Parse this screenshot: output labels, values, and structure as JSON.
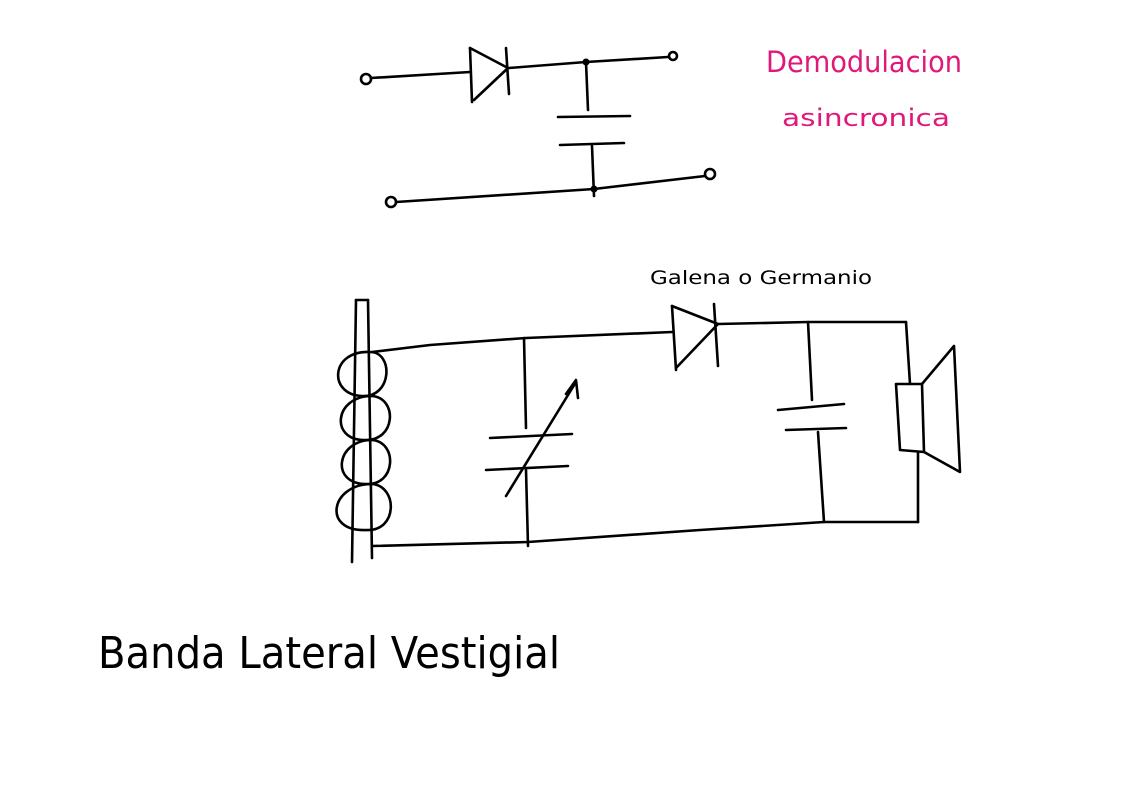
{
  "colors": {
    "background": "#ffffff",
    "ink": "#000000",
    "annotation": "#e0187a"
  },
  "annotations": {
    "title_line1": "Demodulacion",
    "title_line2": "asincronica",
    "diode_label": "Galena o Germanio",
    "footer_text": "Banda Lateral Vestigial"
  }
}
